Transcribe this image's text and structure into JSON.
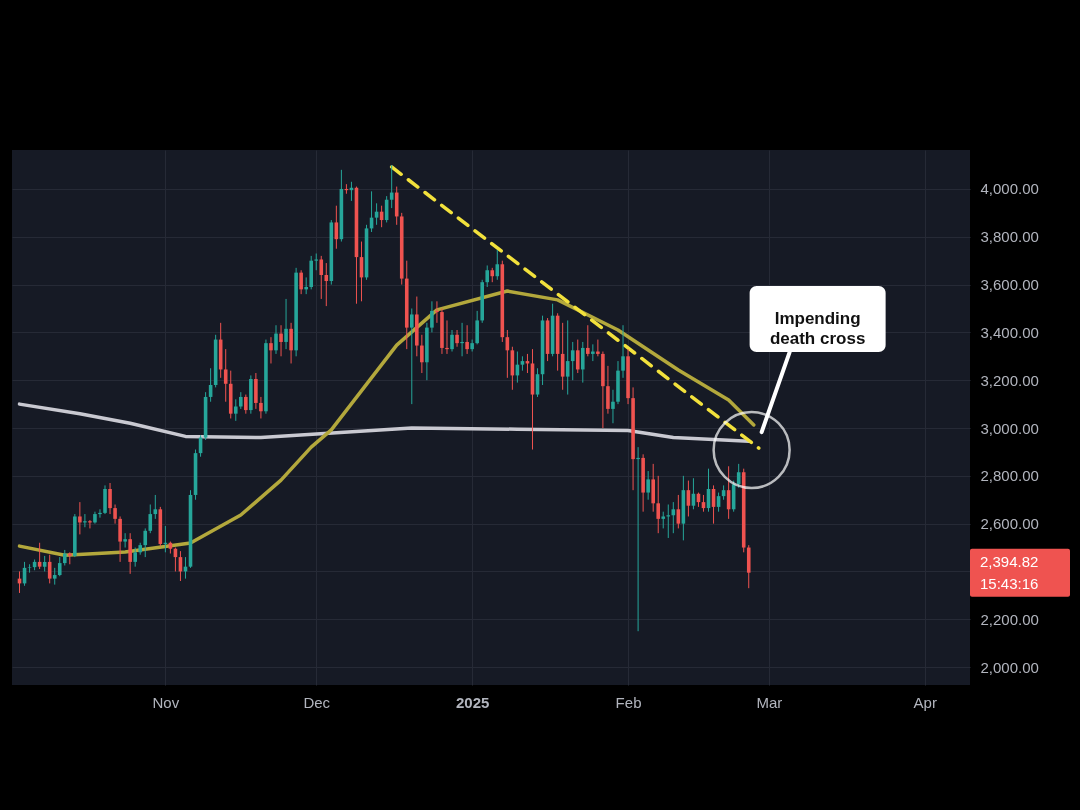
{
  "chart_data": {
    "type": "candlestick",
    "x": [
      "2024-10-03",
      "2024-10-04",
      "2024-10-05",
      "2024-10-06",
      "2024-10-07",
      "2024-10-08",
      "2024-10-09",
      "2024-10-10",
      "2024-10-11",
      "2024-10-12",
      "2024-10-13",
      "2024-10-14",
      "2024-10-15",
      "2024-10-16",
      "2024-10-17",
      "2024-10-18",
      "2024-10-19",
      "2024-10-20",
      "2024-10-21",
      "2024-10-22",
      "2024-10-23",
      "2024-10-24",
      "2024-10-25",
      "2024-10-26",
      "2024-10-27",
      "2024-10-28",
      "2024-10-29",
      "2024-10-30",
      "2024-10-31",
      "2024-11-01",
      "2024-11-02",
      "2024-11-03",
      "2024-11-04",
      "2024-11-05",
      "2024-11-06",
      "2024-11-07",
      "2024-11-08",
      "2024-11-09",
      "2024-11-10",
      "2024-11-11",
      "2024-11-12",
      "2024-11-13",
      "2024-11-14",
      "2024-11-15",
      "2024-11-16",
      "2024-11-17",
      "2024-11-18",
      "2024-11-19",
      "2024-11-20",
      "2024-11-21",
      "2024-11-22",
      "2024-11-23",
      "2024-11-24",
      "2024-11-25",
      "2024-11-26",
      "2024-11-27",
      "2024-11-28",
      "2024-11-29",
      "2024-11-30",
      "2024-12-01",
      "2024-12-02",
      "2024-12-03",
      "2024-12-04",
      "2024-12-05",
      "2024-12-06",
      "2024-12-07",
      "2024-12-08",
      "2024-12-09",
      "2024-12-10",
      "2024-12-11",
      "2024-12-12",
      "2024-12-13",
      "2024-12-14",
      "2024-12-15",
      "2024-12-16",
      "2024-12-17",
      "2024-12-18",
      "2024-12-19",
      "2024-12-20",
      "2024-12-21",
      "2024-12-22",
      "2024-12-23",
      "2024-12-24",
      "2024-12-25",
      "2024-12-26",
      "2024-12-27",
      "2024-12-28",
      "2024-12-29",
      "2024-12-30",
      "2024-12-31",
      "2025-01-01",
      "2025-01-02",
      "2025-01-03",
      "2025-01-04",
      "2025-01-05",
      "2025-01-06",
      "2025-01-07",
      "2025-01-08",
      "2025-01-09",
      "2025-01-10",
      "2025-01-11",
      "2025-01-12",
      "2025-01-13",
      "2025-01-14",
      "2025-01-15",
      "2025-01-16",
      "2025-01-17",
      "2025-01-18",
      "2025-01-19",
      "2025-01-20",
      "2025-01-21",
      "2025-01-22",
      "2025-01-23",
      "2025-01-24",
      "2025-01-25",
      "2025-01-26",
      "2025-01-27",
      "2025-01-28",
      "2025-01-29",
      "2025-01-30",
      "2025-01-31",
      "2025-02-01",
      "2025-02-02",
      "2025-02-03",
      "2025-02-04",
      "2025-02-05",
      "2025-02-06",
      "2025-02-07",
      "2025-02-08",
      "2025-02-09",
      "2025-02-10",
      "2025-02-11",
      "2025-02-12",
      "2025-02-13",
      "2025-02-14",
      "2025-02-15",
      "2025-02-16",
      "2025-02-17",
      "2025-02-18",
      "2025-02-19",
      "2025-02-20",
      "2025-02-21",
      "2025-02-22",
      "2025-02-23",
      "2025-02-24",
      "2025-02-25"
    ],
    "ohlc": [
      [
        2370,
        2400,
        2310,
        2350
      ],
      [
        2350,
        2440,
        2340,
        2415
      ],
      [
        2415,
        2430,
        2395,
        2418
      ],
      [
        2418,
        2450,
        2405,
        2440
      ],
      [
        2440,
        2520,
        2410,
        2420
      ],
      [
        2420,
        2465,
        2400,
        2440
      ],
      [
        2440,
        2470,
        2350,
        2370
      ],
      [
        2370,
        2415,
        2345,
        2385
      ],
      [
        2385,
        2460,
        2380,
        2435
      ],
      [
        2435,
        2490,
        2425,
        2475
      ],
      [
        2475,
        2480,
        2430,
        2465
      ],
      [
        2465,
        2640,
        2460,
        2630
      ],
      [
        2630,
        2690,
        2555,
        2605
      ],
      [
        2605,
        2640,
        2585,
        2610
      ],
      [
        2610,
        2615,
        2580,
        2605
      ],
      [
        2605,
        2650,
        2600,
        2640
      ],
      [
        2640,
        2660,
        2625,
        2645
      ],
      [
        2645,
        2760,
        2640,
        2745
      ],
      [
        2745,
        2770,
        2640,
        2665
      ],
      [
        2665,
        2680,
        2600,
        2620
      ],
      [
        2620,
        2630,
        2440,
        2525
      ],
      [
        2525,
        2560,
        2500,
        2535
      ],
      [
        2535,
        2560,
        2390,
        2440
      ],
      [
        2440,
        2500,
        2420,
        2480
      ],
      [
        2480,
        2520,
        2470,
        2510
      ],
      [
        2510,
        2580,
        2460,
        2570
      ],
      [
        2570,
        2680,
        2560,
        2640
      ],
      [
        2640,
        2720,
        2620,
        2660
      ],
      [
        2660,
        2670,
        2505,
        2515
      ],
      [
        2515,
        2590,
        2480,
        2520
      ],
      [
        2520,
        2525,
        2475,
        2495
      ],
      [
        2495,
        2500,
        2400,
        2460
      ],
      [
        2460,
        2485,
        2360,
        2400
      ],
      [
        2400,
        2460,
        2370,
        2420
      ],
      [
        2420,
        2740,
        2415,
        2720
      ],
      [
        2720,
        2910,
        2700,
        2895
      ],
      [
        2895,
        2970,
        2880,
        2960
      ],
      [
        2960,
        3150,
        2950,
        3130
      ],
      [
        3130,
        3250,
        3110,
        3180
      ],
      [
        3180,
        3390,
        3170,
        3370
      ],
      [
        3370,
        3440,
        3210,
        3245
      ],
      [
        3245,
        3330,
        3110,
        3185
      ],
      [
        3185,
        3240,
        3040,
        3060
      ],
      [
        3060,
        3120,
        3030,
        3090
      ],
      [
        3090,
        3150,
        3080,
        3130
      ],
      [
        3130,
        3140,
        3060,
        3075
      ],
      [
        3075,
        3220,
        3060,
        3205
      ],
      [
        3205,
        3230,
        3080,
        3105
      ],
      [
        3105,
        3130,
        3040,
        3070
      ],
      [
        3070,
        3370,
        3060,
        3355
      ],
      [
        3355,
        3380,
        3270,
        3325
      ],
      [
        3325,
        3430,
        3310,
        3395
      ],
      [
        3395,
        3430,
        3300,
        3360
      ],
      [
        3360,
        3540,
        3330,
        3415
      ],
      [
        3415,
        3440,
        3270,
        3325
      ],
      [
        3325,
        3670,
        3300,
        3650
      ],
      [
        3650,
        3660,
        3560,
        3580
      ],
      [
        3580,
        3630,
        3560,
        3590
      ],
      [
        3590,
        3720,
        3580,
        3700
      ],
      [
        3700,
        3730,
        3660,
        3705
      ],
      [
        3705,
        3720,
        3540,
        3640
      ],
      [
        3640,
        3690,
        3510,
        3615
      ],
      [
        3615,
        3870,
        3600,
        3860
      ],
      [
        3860,
        3930,
        3750,
        3790
      ],
      [
        3790,
        4080,
        3780,
        4000
      ],
      [
        4000,
        4020,
        3980,
        3995
      ],
      [
        3995,
        4030,
        3950,
        4005
      ],
      [
        4005,
        4010,
        3520,
        3715
      ],
      [
        3715,
        3780,
        3530,
        3630
      ],
      [
        3630,
        3850,
        3620,
        3835
      ],
      [
        3835,
        3990,
        3820,
        3880
      ],
      [
        3880,
        3940,
        3850,
        3905
      ],
      [
        3905,
        3930,
        3840,
        3870
      ],
      [
        3870,
        3970,
        3860,
        3955
      ],
      [
        3955,
        4100,
        3920,
        3985
      ],
      [
        3985,
        4010,
        3850,
        3885
      ],
      [
        3885,
        3900,
        3600,
        3625
      ],
      [
        3625,
        3700,
        3330,
        3420
      ],
      [
        3420,
        3500,
        3100,
        3475
      ],
      [
        3475,
        3550,
        3300,
        3345
      ],
      [
        3345,
        3390,
        3230,
        3275
      ],
      [
        3275,
        3440,
        3200,
        3420
      ],
      [
        3420,
        3530,
        3400,
        3490
      ],
      [
        3490,
        3530,
        3440,
        3485
      ],
      [
        3485,
        3500,
        3310,
        3335
      ],
      [
        3335,
        3450,
        3310,
        3330
      ],
      [
        3330,
        3410,
        3320,
        3390
      ],
      [
        3390,
        3410,
        3340,
        3355
      ],
      [
        3355,
        3440,
        3300,
        3360
      ],
      [
        3360,
        3430,
        3310,
        3330
      ],
      [
        3330,
        3370,
        3320,
        3355
      ],
      [
        3355,
        3490,
        3350,
        3450
      ],
      [
        3450,
        3620,
        3440,
        3610
      ],
      [
        3610,
        3680,
        3590,
        3660
      ],
      [
        3660,
        3670,
        3610,
        3635
      ],
      [
        3635,
        3745,
        3620,
        3685
      ],
      [
        3685,
        3700,
        3360,
        3380
      ],
      [
        3380,
        3410,
        3210,
        3325
      ],
      [
        3325,
        3340,
        3160,
        3220
      ],
      [
        3220,
        3320,
        3190,
        3265
      ],
      [
        3265,
        3300,
        3240,
        3280
      ],
      [
        3280,
        3310,
        3230,
        3270
      ],
      [
        3270,
        3330,
        2910,
        3140
      ],
      [
        3140,
        3250,
        3130,
        3225
      ],
      [
        3225,
        3470,
        3180,
        3450
      ],
      [
        3450,
        3460,
        3280,
        3310
      ],
      [
        3310,
        3520,
        3300,
        3470
      ],
      [
        3470,
        3480,
        3240,
        3310
      ],
      [
        3310,
        3440,
        3160,
        3215
      ],
      [
        3215,
        3450,
        3140,
        3280
      ],
      [
        3280,
        3360,
        3200,
        3325
      ],
      [
        3325,
        3370,
        3230,
        3245
      ],
      [
        3245,
        3360,
        3190,
        3335
      ],
      [
        3335,
        3430,
        3300,
        3310
      ],
      [
        3310,
        3350,
        3280,
        3320
      ],
      [
        3320,
        3370,
        3300,
        3310
      ],
      [
        3310,
        3320,
        3000,
        3175
      ],
      [
        3175,
        3260,
        3060,
        3080
      ],
      [
        3080,
        3160,
        3020,
        3110
      ],
      [
        3110,
        3280,
        3100,
        3240
      ],
      [
        3240,
        3430,
        3210,
        3300
      ],
      [
        3300,
        3330,
        3100,
        3125
      ],
      [
        3125,
        3170,
        2740,
        2870
      ],
      [
        2870,
        2920,
        2150,
        2875
      ],
      [
        2875,
        2890,
        2650,
        2730
      ],
      [
        2730,
        2820,
        2700,
        2785
      ],
      [
        2785,
        2850,
        2650,
        2685
      ],
      [
        2685,
        2800,
        2560,
        2620
      ],
      [
        2620,
        2650,
        2580,
        2630
      ],
      [
        2630,
        2680,
        2540,
        2635
      ],
      [
        2635,
        2690,
        2560,
        2660
      ],
      [
        2660,
        2720,
        2580,
        2600
      ],
      [
        2600,
        2800,
        2530,
        2740
      ],
      [
        2740,
        2780,
        2630,
        2675
      ],
      [
        2675,
        2790,
        2660,
        2725
      ],
      [
        2725,
        2730,
        2670,
        2690
      ],
      [
        2690,
        2720,
        2650,
        2665
      ],
      [
        2665,
        2830,
        2650,
        2745
      ],
      [
        2745,
        2760,
        2600,
        2670
      ],
      [
        2670,
        2730,
        2650,
        2715
      ],
      [
        2715,
        2760,
        2700,
        2740
      ],
      [
        2740,
        2840,
        2620,
        2660
      ],
      [
        2660,
        2780,
        2650,
        2765
      ],
      [
        2765,
        2850,
        2750,
        2815
      ],
      [
        2815,
        2830,
        2480,
        2500
      ],
      [
        2500,
        2510,
        2330,
        2394.82
      ]
    ],
    "series": [
      {
        "type": "line",
        "color": "#c9c9d1",
        "line_style": "solid",
        "x": [
          "2024-10-03",
          "2024-10-15",
          "2024-10-25",
          "2024-11-05",
          "2024-11-20",
          "2024-12-05",
          "2024-12-20",
          "2025-01-10",
          "2025-02-01",
          "2025-02-10",
          "2025-02-25"
        ],
        "values": [
          3100,
          3060,
          3020,
          2965,
          2960,
          2980,
          3000,
          2995,
          2990,
          2960,
          2945
        ]
      },
      {
        "type": "line",
        "color": "#b3a83c",
        "line_style": "solid",
        "x": [
          "2024-10-03",
          "2024-10-12",
          "2024-10-24",
          "2024-11-06",
          "2024-11-16",
          "2024-11-24",
          "2024-11-30",
          "2024-12-04",
          "2024-12-17",
          "2024-12-25",
          "2025-01-08",
          "2025-01-18",
          "2025-01-30",
          "2025-02-11",
          "2025-02-21",
          "2025-02-26"
        ],
        "values": [
          2506,
          2468,
          2481,
          2519,
          2636,
          2782,
          2920,
          2992,
          3347,
          3494,
          3573,
          3536,
          3410,
          3243,
          3117,
          3013
        ]
      },
      {
        "type": "line",
        "color": "#f2e13c",
        "line_style": "dashed",
        "x": [
          "2024-12-16",
          "2025-02-27"
        ],
        "values": [
          4092,
          2916
        ]
      }
    ],
    "xlim": [
      "2024-10-02T12:00",
      "2025-04-09"
    ],
    "xticks": [
      {
        "value": "2024-11-01",
        "label": "Nov"
      },
      {
        "value": "2024-12-01",
        "label": "Dec"
      },
      {
        "value": "2025-01-01",
        "label": "2025"
      },
      {
        "value": "2025-02-01",
        "label": "Feb"
      },
      {
        "value": "2025-03-01",
        "label": "Mar"
      },
      {
        "value": "2025-04-01",
        "label": "Apr"
      }
    ],
    "ylim": [
      1925,
      4163
    ],
    "yticks": [
      {
        "value": 2000,
        "label": "2,000.00"
      },
      {
        "value": 2200,
        "label": "2,200.00"
      },
      {
        "value": 2400,
        "label": null
      },
      {
        "value": 2600,
        "label": "2,600.00"
      },
      {
        "value": 2800,
        "label": "2,800.00"
      },
      {
        "value": 3000,
        "label": "3,000.00"
      },
      {
        "value": 3200,
        "label": "3,200.00"
      },
      {
        "value": 3400,
        "label": "3,400.00"
      },
      {
        "value": 3600,
        "label": "3,600.00"
      },
      {
        "value": 3800,
        "label": "3,800.00"
      },
      {
        "value": 4000,
        "label": "4,000.00"
      }
    ],
    "grid": true,
    "annotations": [
      "Impending death cross",
      "2,394.82",
      "15:43:16"
    ]
  }
}
